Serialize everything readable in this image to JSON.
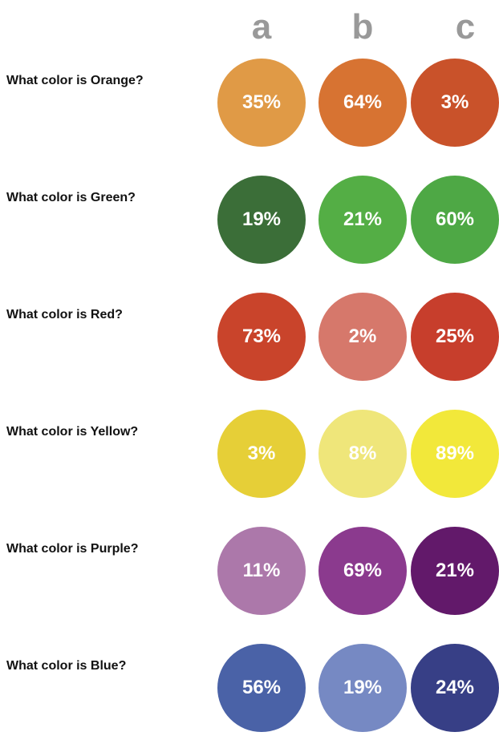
{
  "chart_data": {
    "type": "bubble-grid",
    "columns": [
      "a",
      "b",
      "c"
    ],
    "unit": "%",
    "rows": [
      {
        "question": "What color is Orange?",
        "values": [
          35,
          64,
          3
        ],
        "colors": [
          "#e09a46",
          "#d77332",
          "#c9522a"
        ]
      },
      {
        "question": "What color is Green?",
        "values": [
          19,
          21,
          60
        ],
        "colors": [
          "#3b6e38",
          "#54ae45",
          "#4ea845"
        ]
      },
      {
        "question": "What color is Red?",
        "values": [
          73,
          2,
          25
        ],
        "colors": [
          "#c9442b",
          "#d6786b",
          "#c73e2c"
        ]
      },
      {
        "question": "What color is Yellow?",
        "values": [
          3,
          8,
          89
        ],
        "colors": [
          "#e6cf37",
          "#efe67a",
          "#f2e83a"
        ]
      },
      {
        "question": "What color is Purple?",
        "values": [
          11,
          69,
          21
        ],
        "colors": [
          "#ac78aa",
          "#8b3a8e",
          "#62196a"
        ]
      },
      {
        "question": "What color is Blue?",
        "values": [
          56,
          19,
          24
        ],
        "colors": [
          "#4a62a7",
          "#7689c3",
          "#373f86"
        ]
      }
    ]
  }
}
